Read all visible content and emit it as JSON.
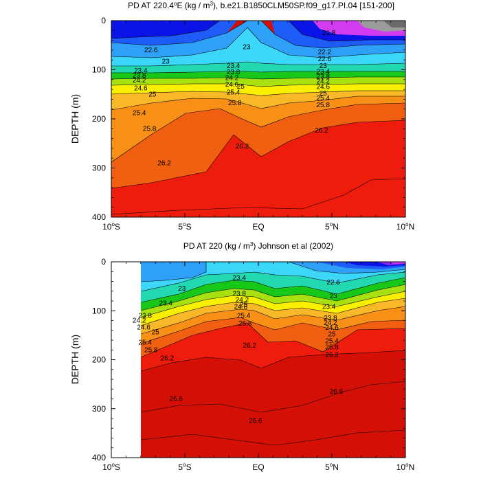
{
  "figure": {
    "description_domain": "ocean potential density sections"
  },
  "chart_data": [
    {
      "type": "contour",
      "title_main": "PD AT 220.4",
      "title_deg_sup": "o",
      "title_mid": "E (kg / m",
      "title_unit_sup": "3",
      "title_end": "), b.e21.B1850CLM50SP.f09_g17.PI.04 [151-200]",
      "xlabel": "",
      "ylabel": "DEPTH (m)",
      "xlim": [
        -10,
        10
      ],
      "ylim": [
        400,
        0
      ],
      "y_ticks": [
        "0",
        "100",
        "200",
        "300",
        "400"
      ],
      "x_ticks": [
        {
          "num": "10",
          "sup": "o",
          "hem": "S"
        },
        {
          "num": "5",
          "sup": "o",
          "hem": "S"
        },
        {
          "num": "EQ",
          "sup": "",
          "hem": ""
        },
        {
          "num": "5",
          "sup": "o",
          "hem": "N"
        },
        {
          "num": "10",
          "sup": "o",
          "hem": "N"
        }
      ],
      "data_start_lat": -10,
      "contour_labels": [
        {
          "text": "21.8",
          "lat": 4.8,
          "depth": 25
        },
        {
          "text": "22.6",
          "lat": -7.3,
          "depth": 60
        },
        {
          "text": "23",
          "lat": -6.3,
          "depth": 83
        },
        {
          "text": "23",
          "lat": -0.8,
          "depth": 54
        },
        {
          "text": "22.2",
          "lat": 4.5,
          "depth": 64
        },
        {
          "text": "22.6",
          "lat": 4.5,
          "depth": 78
        },
        {
          "text": "23",
          "lat": 4.4,
          "depth": 92
        },
        {
          "text": "23.4",
          "lat": -8.0,
          "depth": 102
        },
        {
          "text": "23.8",
          "lat": -8.1,
          "depth": 112
        },
        {
          "text": "24.2",
          "lat": -8.1,
          "depth": 122
        },
        {
          "text": "24.6",
          "lat": -8.0,
          "depth": 138
        },
        {
          "text": "23.4",
          "lat": -1.7,
          "depth": 92
        },
        {
          "text": "23.8",
          "lat": -1.7,
          "depth": 105
        },
        {
          "text": "24.2",
          "lat": -1.8,
          "depth": 117
        },
        {
          "text": "24.6",
          "lat": -1.8,
          "depth": 130
        },
        {
          "text": "25",
          "lat": -7.2,
          "depth": 150
        },
        {
          "text": "25.4",
          "lat": -1.7,
          "depth": 146
        },
        {
          "text": "25",
          "lat": -1.2,
          "depth": 134
        },
        {
          "text": "25.8",
          "lat": -1.6,
          "depth": 168
        },
        {
          "text": "23.4",
          "lat": 4.4,
          "depth": 104
        },
        {
          "text": "23.8",
          "lat": 4.4,
          "depth": 114
        },
        {
          "text": "24.2",
          "lat": 4.4,
          "depth": 124
        },
        {
          "text": "24.6",
          "lat": 4.4,
          "depth": 135
        },
        {
          "text": "25",
          "lat": 4.4,
          "depth": 148
        },
        {
          "text": "25.4",
          "lat": 4.4,
          "depth": 158
        },
        {
          "text": "25.8",
          "lat": 4.4,
          "depth": 172
        },
        {
          "text": "25.4",
          "lat": -8.1,
          "depth": 188
        },
        {
          "text": "25.8",
          "lat": -7.4,
          "depth": 220
        },
        {
          "text": "26.2",
          "lat": -1.1,
          "depth": 256
        },
        {
          "text": "26.2",
          "lat": 4.3,
          "depth": 224
        },
        {
          "text": "26.2",
          "lat": -6.4,
          "depth": 290
        }
      ]
    },
    {
      "type": "contour",
      "title_main": "PD AT 220 (kg / m",
      "title_unit_sup": "3",
      "title_end": ") Johnson et al (2002)",
      "xlabel": "",
      "ylabel": "DEPTH (m)",
      "xlim": [
        -10,
        10
      ],
      "ylim": [
        400,
        0
      ],
      "y_ticks": [
        "0",
        "100",
        "200",
        "300",
        "400"
      ],
      "x_ticks": [
        {
          "num": "10",
          "sup": "o",
          "hem": "S"
        },
        {
          "num": "5",
          "sup": "o",
          "hem": "S"
        },
        {
          "num": "EQ",
          "sup": "",
          "hem": ""
        },
        {
          "num": "5",
          "sup": "o",
          "hem": "N"
        },
        {
          "num": "10",
          "sup": "o",
          "hem": "N"
        }
      ],
      "data_start_lat": -8,
      "contour_labels": [
        {
          "text": "23",
          "lat": -5.2,
          "depth": 55
        },
        {
          "text": "23.4",
          "lat": -1.3,
          "depth": 33
        },
        {
          "text": "22.6",
          "lat": 5.1,
          "depth": 42
        },
        {
          "text": "23",
          "lat": 5.1,
          "depth": 70
        },
        {
          "text": "23.4",
          "lat": -6.3,
          "depth": 85
        },
        {
          "text": "23.8",
          "lat": -1.3,
          "depth": 65
        },
        {
          "text": "24.2",
          "lat": -1.1,
          "depth": 78
        },
        {
          "text": "24.6",
          "lat": -1.2,
          "depth": 92
        },
        {
          "text": "25",
          "lat": -1.0,
          "depth": 88
        },
        {
          "text": "25.4",
          "lat": -1.0,
          "depth": 110
        },
        {
          "text": "25.8",
          "lat": -0.9,
          "depth": 126
        },
        {
          "text": "23.4",
          "lat": 4.8,
          "depth": 92
        },
        {
          "text": "23.8",
          "lat": -7.7,
          "depth": 110
        },
        {
          "text": "24.2",
          "lat": -8.1,
          "depth": 120
        },
        {
          "text": "24.6",
          "lat": -7.8,
          "depth": 134
        },
        {
          "text": "25",
          "lat": -7.0,
          "depth": 144
        },
        {
          "text": "23.8",
          "lat": 4.9,
          "depth": 115
        },
        {
          "text": "24.2",
          "lat": 4.9,
          "depth": 125
        },
        {
          "text": "24.6",
          "lat": 5.0,
          "depth": 135
        },
        {
          "text": "25",
          "lat": 5.0,
          "depth": 148
        },
        {
          "text": "25.4",
          "lat": 5.0,
          "depth": 162
        },
        {
          "text": "25.8",
          "lat": 5.0,
          "depth": 175
        },
        {
          "text": "25.4",
          "lat": -7.7,
          "depth": 165
        },
        {
          "text": "25.8",
          "lat": -7.3,
          "depth": 180
        },
        {
          "text": "26.2",
          "lat": -6.2,
          "depth": 197
        },
        {
          "text": "26.2",
          "lat": -0.6,
          "depth": 171
        },
        {
          "text": "26.2",
          "lat": 5.0,
          "depth": 190
        },
        {
          "text": "26.6",
          "lat": -5.6,
          "depth": 280
        },
        {
          "text": "26.6",
          "lat": -0.2,
          "depth": 325
        },
        {
          "text": "26.6",
          "lat": 5.3,
          "depth": 265
        }
      ]
    }
  ],
  "colors": {
    "band_purple": "#d23cf0",
    "band_grey": "#9b9b9b",
    "band_darkgrey": "#6a6a6a",
    "band_navy": "#0a14e6",
    "band_blue": "#1e5cf8",
    "band_lightblue": "#2fa0f8",
    "band_cyan": "#3cd6f8",
    "band_teal": "#22d8b0",
    "band_green": "#18c818",
    "band_lime": "#a8e010",
    "band_yellow": "#f8f000",
    "band_orange1": "#f8b828",
    "band_orange2": "#f89018",
    "band_orange3": "#f06010",
    "band_red": "#ee1c0c",
    "band_darkred": "#d41006"
  }
}
